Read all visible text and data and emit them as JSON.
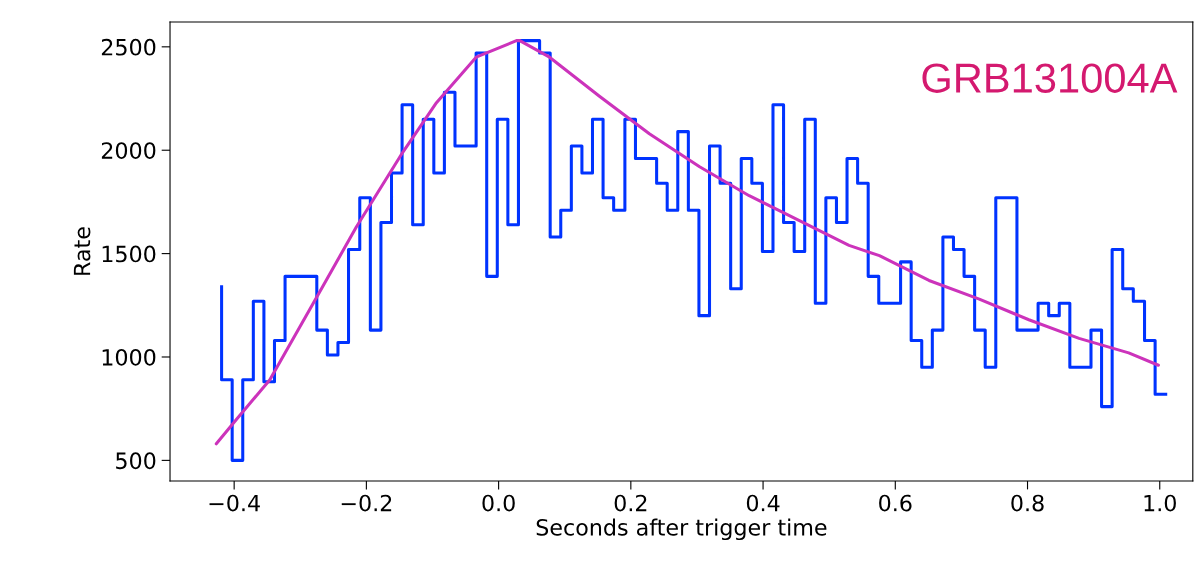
{
  "chart_data": {
    "type": "step",
    "xlabel": "Seconds after trigger time",
    "ylabel": "Rate",
    "annotations": [
      "GRB131004A"
    ],
    "xlim": [
      -0.497,
      1.05
    ],
    "ylim": [
      400,
      2620
    ],
    "xticks": [
      {
        "value": -0.4,
        "label": "−0.4"
      },
      {
        "value": -0.2,
        "label": "−0.2"
      },
      {
        "value": 0,
        "label": "0.0"
      },
      0.2,
      0.4,
      0.6,
      0.8,
      {
        "value": 1,
        "label": "1.0"
      }
    ],
    "yticks": [
      500,
      1000,
      1500,
      2000,
      2500
    ],
    "grid": false,
    "legend": false,
    "series": [
      {
        "color": "#0033ff",
        "x": [
          -0.419,
          -0.403,
          -0.387,
          -0.371,
          -0.355,
          -0.339,
          -0.323,
          -0.307,
          -0.291,
          -0.275,
          -0.259,
          -0.243,
          -0.227,
          -0.21,
          -0.194,
          -0.178,
          -0.162,
          -0.146,
          -0.13,
          -0.114,
          -0.098,
          -0.082,
          -0.066,
          -0.05,
          -0.034,
          -0.018,
          -0.002,
          0.014,
          0.03,
          0.046,
          0.062,
          0.078,
          0.094,
          0.11,
          0.126,
          0.142,
          0.158,
          0.174,
          0.191,
          0.207,
          0.223,
          0.239,
          0.255,
          0.271,
          0.287,
          0.303,
          0.319,
          0.335,
          0.351,
          0.367,
          0.383,
          0.399,
          0.415,
          0.431,
          0.447,
          0.463,
          0.479,
          0.495,
          0.511,
          0.527,
          0.543,
          0.559,
          0.575,
          0.592,
          0.608,
          0.624,
          0.64,
          0.656,
          0.672,
          0.688,
          0.704,
          0.72,
          0.736,
          0.752,
          0.768,
          0.784,
          0.8,
          0.816,
          0.832,
          0.848,
          0.864,
          0.88,
          0.896,
          0.912,
          0.928,
          0.944,
          0.96,
          0.977,
          0.993,
          1.009
        ],
        "values": [
          1340,
          890,
          500,
          890,
          1270,
          880,
          1080,
          1390,
          1390,
          1390,
          1130,
          1010,
          1070,
          1520,
          1770,
          1130,
          1650,
          1890,
          2220,
          1640,
          2150,
          1890,
          2280,
          2020,
          2020,
          2470,
          1390,
          2150,
          1640,
          2530,
          2530,
          2470,
          1580,
          1710,
          2020,
          1890,
          2150,
          1770,
          1710,
          2150,
          1960,
          1960,
          1840,
          1710,
          2090,
          1710,
          1200,
          2020,
          1840,
          1330,
          1960,
          1840,
          1510,
          2220,
          1650,
          1510,
          2150,
          1260,
          1770,
          1650,
          1960,
          1840,
          1390,
          1260,
          1260,
          1460,
          1080,
          950,
          1130,
          1580,
          1520,
          1390,
          1130,
          950,
          1770,
          1770,
          1130,
          1130,
          1260,
          1200,
          1260,
          950,
          950,
          1130,
          760,
          1520,
          1330,
          1270,
          1080,
          820
        ]
      },
      {
        "type": "line",
        "color": "#cc33bb",
        "x": [
          -0.427,
          -0.396,
          -0.346,
          -0.275,
          -0.215,
          -0.145,
          -0.094,
          -0.034,
          0.027,
          0.032,
          0.077,
          0.153,
          0.228,
          0.304,
          0.379,
          0.455,
          0.53,
          0.576,
          0.651,
          0.727,
          0.802,
          0.878,
          0.953,
          0.998
        ],
        "values": [
          580,
          700,
          890,
          1290,
          1630,
          1990,
          2230,
          2450,
          2530,
          2530,
          2450,
          2260,
          2080,
          1920,
          1780,
          1660,
          1540,
          1490,
          1370,
          1280,
          1180,
          1090,
          1020,
          960
        ]
      }
    ]
  }
}
